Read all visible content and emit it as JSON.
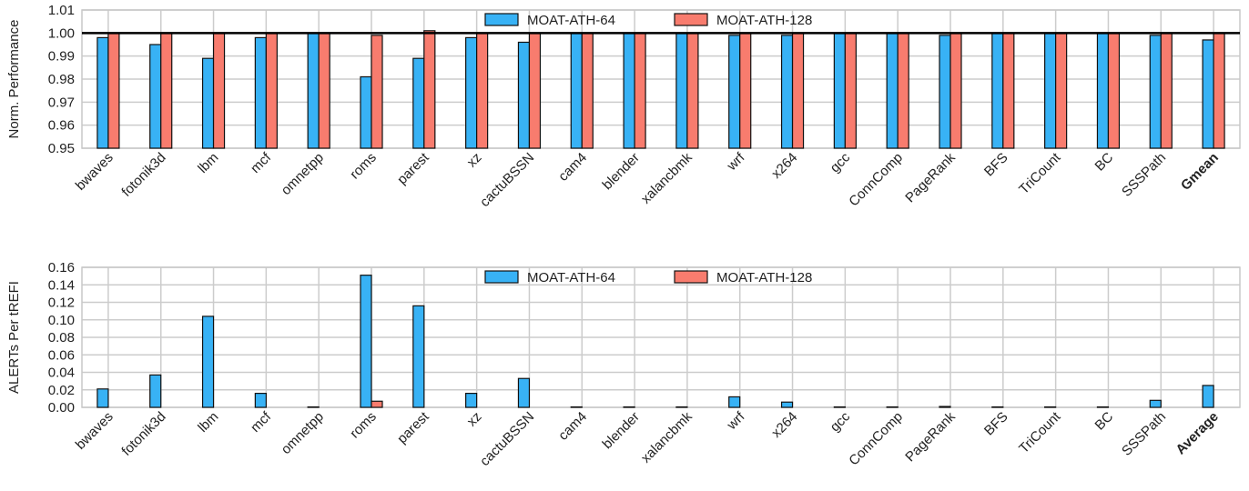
{
  "colors": {
    "series_a": "#38b2f5",
    "series_b": "#f87c6e",
    "grid": "#cccccc",
    "axis": "#c8c8c8",
    "reference_line": "#000000",
    "bar_edge": "#111111"
  },
  "chart_data": [
    {
      "type": "bar",
      "ylabel": "Norm. Performance",
      "ylim": [
        0.95,
        1.01
      ],
      "yticks": [
        "0.95",
        "0.96",
        "0.97",
        "0.98",
        "0.99",
        "1.00",
        "1.01"
      ],
      "reference_line": 1.0,
      "grid": true,
      "legend": "top-center",
      "categories": [
        "bwaves",
        "fotonik3d",
        "lbm",
        "mcf",
        "omnetpp",
        "roms",
        "parest",
        "xz",
        "cactuBSSN",
        "cam4",
        "blender",
        "xalancbmk",
        "wrf",
        "x264",
        "gcc",
        "ConnComp",
        "PageRank",
        "BFS",
        "TriCount",
        "BC",
        "SSSPath",
        "Gmean"
      ],
      "bold_category": "Gmean",
      "series": [
        {
          "name": "MOAT-ATH-64",
          "values": [
            0.998,
            0.995,
            0.989,
            0.998,
            1.0,
            0.981,
            0.989,
            0.998,
            0.996,
            1.0,
            1.0,
            1.0,
            0.999,
            0.999,
            1.0,
            1.0,
            0.999,
            1.0,
            1.0,
            1.0,
            0.999,
            0.997
          ]
        },
        {
          "name": "MOAT-ATH-128",
          "values": [
            1.0,
            1.0,
            1.0,
            1.0,
            1.0,
            0.999,
            1.001,
            1.0,
            1.0,
            1.0,
            1.0,
            1.0,
            1.0,
            1.0,
            1.0,
            1.0,
            1.0,
            1.0,
            1.0,
            1.0,
            1.0,
            1.0
          ]
        }
      ]
    },
    {
      "type": "bar",
      "ylabel": "ALERTs Per tREFI",
      "ylim": [
        0.0,
        0.16
      ],
      "yticks": [
        "0.00",
        "0.02",
        "0.04",
        "0.06",
        "0.08",
        "0.10",
        "0.12",
        "0.14",
        "0.16"
      ],
      "grid": true,
      "legend": "top-center",
      "categories": [
        "bwaves",
        "fotonik3d",
        "lbm",
        "mcf",
        "omnetpp",
        "roms",
        "parest",
        "xz",
        "cactuBSSN",
        "cam4",
        "blender",
        "xalancbmk",
        "wrf",
        "x264",
        "gcc",
        "ConnComp",
        "PageRank",
        "BFS",
        "TriCount",
        "BC",
        "SSSPath",
        "Average"
      ],
      "bold_category": "Average",
      "series": [
        {
          "name": "MOAT-ATH-64",
          "values": [
            0.021,
            0.037,
            0.104,
            0.016,
            0.0005,
            0.151,
            0.116,
            0.016,
            0.033,
            0.0005,
            0.0005,
            0.0005,
            0.012,
            0.006,
            0.0005,
            0.0005,
            0.001,
            0.0005,
            0.0005,
            0.0005,
            0.008,
            0.025
          ]
        },
        {
          "name": "MOAT-ATH-128",
          "values": [
            0.0,
            0.0,
            0.0,
            0.0,
            0.0,
            0.007,
            0.0,
            0.0,
            0.0,
            0.0,
            0.0,
            0.0,
            0.0,
            0.0,
            0.0,
            0.0,
            0.0,
            0.0,
            0.0,
            0.0,
            0.0,
            0.0
          ]
        }
      ]
    }
  ]
}
